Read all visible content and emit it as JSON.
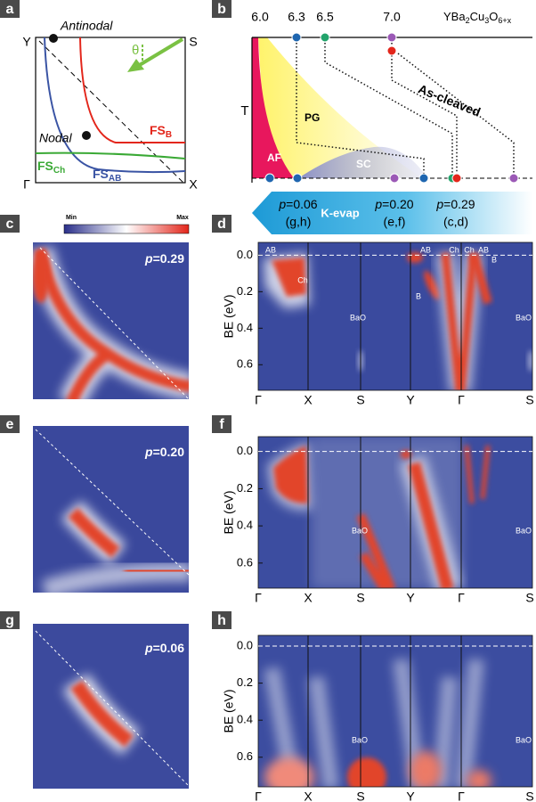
{
  "panel_a": {
    "label": "a",
    "antinodal": "Antinodal",
    "nodal": "Nodal",
    "theta": "θ",
    "corners": [
      "Y",
      "S",
      "Γ",
      "X"
    ],
    "fs_b": [
      "FS",
      "B"
    ],
    "fs_ch": [
      "FS",
      "Ch"
    ],
    "fs_ab": [
      "FS",
      "AB"
    ]
  },
  "panel_b": {
    "label": "b",
    "dopings": [
      "6.0",
      "6.3",
      "6.5",
      "7.0"
    ],
    "compound": [
      "YBa",
      "2",
      "Cu",
      "3",
      "O",
      "6+x"
    ],
    "axis": "T",
    "regions": [
      "PG",
      "AF",
      "SC"
    ],
    "as_cleaved": "As-cleaved",
    "k_evap": "K-evap",
    "samples": [
      {
        "p": "p",
        "value": "=0.06",
        "panels": "(g,h)"
      },
      {
        "p": "p",
        "value": "=0.20",
        "panels": "(e,f)"
      },
      {
        "p": "p",
        "value": "=0.29",
        "panels": "(c,d)"
      }
    ]
  },
  "panel_c": {
    "label": "c",
    "colorbar": [
      "Min",
      "Max"
    ],
    "p": "p",
    "value": "=0.29"
  },
  "panel_d": {
    "label": "d",
    "y_label": "BE (eV)",
    "ylim": [
      -0.07,
      0.74
    ],
    "yticks": [
      {
        "value": 0,
        "label": "0.0"
      },
      {
        "value": 0.2,
        "label": "0.2"
      },
      {
        "value": 0.4,
        "label": "0.4"
      },
      {
        "value": 0.6,
        "label": "0.6"
      }
    ],
    "path": [
      "Γ",
      "X",
      "S",
      "Y",
      "Γ",
      "S"
    ],
    "annotations": [
      "AB",
      "Ch",
      "AB",
      "B",
      "Ch",
      "Ch",
      "AB",
      "B",
      "BaO",
      "BaO"
    ]
  },
  "panel_e": {
    "label": "e",
    "p": "p",
    "value": "=0.20"
  },
  "panel_f": {
    "label": "f",
    "y_label": "BE (eV)",
    "ylim": [
      -0.08,
      0.735
    ],
    "yticks": [
      {
        "value": 0,
        "label": "0.0"
      },
      {
        "value": 0.2,
        "label": "0.2"
      },
      {
        "value": 0.4,
        "label": "0.4"
      },
      {
        "value": 0.6,
        "label": "0.6"
      }
    ],
    "path": [
      "Γ",
      "X",
      "S",
      "Y",
      "Γ",
      "S"
    ],
    "annotations": [
      "BaO",
      "BaO"
    ]
  },
  "panel_g": {
    "label": "g",
    "p": "p",
    "value": "=0.06"
  },
  "panel_h": {
    "label": "h",
    "y_label": "BE (eV)",
    "ylim": [
      -0.058,
      0.76
    ],
    "yticks": [
      {
        "value": 0,
        "label": "0.0"
      },
      {
        "value": 0.2,
        "label": "0.2"
      },
      {
        "value": 0.4,
        "label": "0.4"
      },
      {
        "value": 0.6,
        "label": "0.6"
      }
    ],
    "path": [
      "Γ",
      "X",
      "S",
      "Y",
      "Γ",
      "S"
    ],
    "annotations": [
      "BaO",
      "BaO"
    ]
  }
}
